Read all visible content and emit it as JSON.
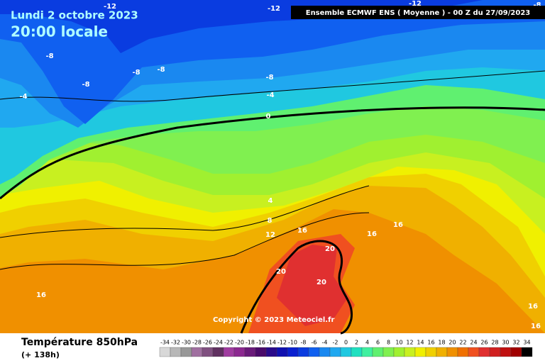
{
  "header": {
    "date": "Lundi 2 octobre 2023",
    "time": "20:00 locale",
    "model": "Ensemble ECMWF ENS  ( Moyenne )  -  00 Z du 27/09/2023"
  },
  "copyright": "Copyright © 2023 Meteociel.fr",
  "footer": {
    "field": "Température 850hPa",
    "lead": "(+ 138h)"
  },
  "contour_labels": [
    -12,
    -12,
    -12,
    -8,
    -8,
    -8,
    -8,
    -8,
    -8,
    -4,
    -4,
    0,
    4,
    8,
    12,
    16,
    16,
    16,
    16,
    16,
    16,
    20,
    20,
    20
  ],
  "legend": {
    "levels": [
      -34,
      -32,
      -30,
      -28,
      -26,
      -24,
      -22,
      -20,
      -18,
      -16,
      -14,
      -12,
      -10,
      -8,
      -6,
      -4,
      -2,
      0,
      2,
      4,
      6,
      8,
      10,
      12,
      14,
      16,
      18,
      20,
      22,
      24,
      26,
      28,
      30,
      32,
      34
    ],
    "colors": [
      "#d8d8d8",
      "#b8b8b8",
      "#989898",
      "#a070a0",
      "#805080",
      "#603060",
      "#a03ca0",
      "#8c2890",
      "#6a1a7a",
      "#4a0a6a",
      "#2a0a8a",
      "#1010b0",
      "#0a20d0",
      "#0a3ce0",
      "#1060f0",
      "#1a88f0",
      "#20a8f0",
      "#20c8e0",
      "#20e0c0",
      "#40f0a0",
      "#60f070",
      "#80f050",
      "#a0f030",
      "#c8f020",
      "#f0f000",
      "#f0d000",
      "#f0b000",
      "#f09000",
      "#f07000",
      "#f05020",
      "#e03030",
      "#d02020",
      "#c01010",
      "#a00000",
      "#000000"
    ]
  }
}
